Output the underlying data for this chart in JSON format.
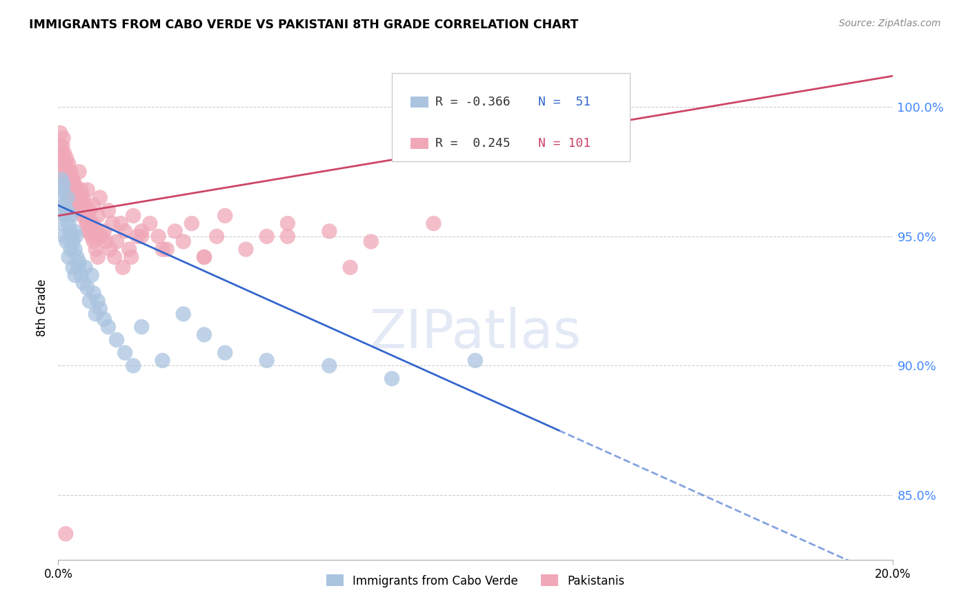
{
  "title": "IMMIGRANTS FROM CABO VERDE VS PAKISTANI 8TH GRADE CORRELATION CHART",
  "source": "Source: ZipAtlas.com",
  "ylabel": "8th Grade",
  "y_ticks": [
    85.0,
    90.0,
    95.0,
    100.0
  ],
  "x_min": 0.0,
  "x_max": 20.0,
  "y_min": 82.5,
  "y_max": 102.0,
  "legend_blue_R": -0.366,
  "legend_blue_N": 51,
  "legend_pink_R": 0.245,
  "legend_pink_N": 101,
  "blue_color": "#aac4e0",
  "pink_color": "#f0a8b8",
  "blue_line_color": "#3366cc",
  "pink_line_color": "#cc4466",
  "watermark": "ZIPatlas",
  "blue_line_x0": 0.0,
  "blue_line_y0": 96.2,
  "blue_line_x1": 12.0,
  "blue_line_y1": 87.5,
  "pink_line_x0": 0.0,
  "pink_line_y0": 95.8,
  "pink_line_x1": 20.0,
  "pink_line_y1": 101.2,
  "cabo_verde_x": [
    0.05,
    0.08,
    0.1,
    0.12,
    0.15,
    0.18,
    0.2,
    0.22,
    0.25,
    0.28,
    0.3,
    0.32,
    0.35,
    0.38,
    0.4,
    0.42,
    0.45,
    0.48,
    0.5,
    0.55,
    0.6,
    0.65,
    0.7,
    0.75,
    0.8,
    0.85,
    0.9,
    0.95,
    1.0,
    1.1,
    1.2,
    1.4,
    1.6,
    1.8,
    2.0,
    2.5,
    3.0,
    4.0,
    5.0,
    6.5,
    8.0,
    10.0,
    0.05,
    0.1,
    0.15,
    0.2,
    0.25,
    0.3,
    0.35,
    0.4,
    3.5
  ],
  "cabo_verde_y": [
    96.5,
    97.2,
    96.8,
    97.0,
    96.2,
    95.8,
    96.0,
    96.5,
    95.5,
    95.2,
    95.8,
    95.0,
    94.8,
    95.2,
    94.5,
    95.0,
    94.2,
    93.8,
    94.0,
    93.5,
    93.2,
    93.8,
    93.0,
    92.5,
    93.5,
    92.8,
    92.0,
    92.5,
    92.2,
    91.8,
    91.5,
    91.0,
    90.5,
    90.0,
    91.5,
    90.2,
    92.0,
    90.5,
    90.2,
    90.0,
    89.5,
    90.2,
    95.5,
    96.0,
    95.0,
    94.8,
    94.2,
    94.5,
    93.8,
    93.5,
    91.2
  ],
  "pakistani_x": [
    0.02,
    0.05,
    0.08,
    0.1,
    0.12,
    0.15,
    0.18,
    0.2,
    0.22,
    0.25,
    0.28,
    0.3,
    0.32,
    0.35,
    0.38,
    0.4,
    0.42,
    0.45,
    0.48,
    0.5,
    0.52,
    0.55,
    0.58,
    0.6,
    0.62,
    0.65,
    0.68,
    0.7,
    0.72,
    0.75,
    0.8,
    0.85,
    0.9,
    0.95,
    1.0,
    1.1,
    1.2,
    1.3,
    1.4,
    1.5,
    1.6,
    1.7,
    1.8,
    1.9,
    2.0,
    2.2,
    2.4,
    2.6,
    2.8,
    3.0,
    3.2,
    3.5,
    3.8,
    4.0,
    4.5,
    5.0,
    5.5,
    6.5,
    7.5,
    9.0,
    0.05,
    0.1,
    0.15,
    0.2,
    0.25,
    0.3,
    0.35,
    0.4,
    0.45,
    0.5,
    0.55,
    0.6,
    0.65,
    0.7,
    0.75,
    0.8,
    0.85,
    0.9,
    0.95,
    1.0,
    0.12,
    0.22,
    0.32,
    0.42,
    0.52,
    0.62,
    0.72,
    0.82,
    0.92,
    1.05,
    1.15,
    1.25,
    1.35,
    1.55,
    1.75,
    2.0,
    2.5,
    3.5,
    5.5,
    7.0,
    0.18
  ],
  "pakistani_y": [
    97.8,
    98.5,
    97.5,
    98.2,
    98.0,
    97.2,
    97.8,
    97.0,
    97.5,
    97.2,
    97.0,
    96.8,
    97.2,
    96.5,
    97.0,
    96.8,
    96.2,
    96.5,
    96.0,
    97.5,
    96.2,
    96.8,
    95.8,
    96.5,
    96.0,
    96.2,
    95.5,
    96.8,
    95.2,
    96.0,
    95.5,
    96.2,
    95.0,
    95.8,
    96.5,
    95.2,
    96.0,
    95.5,
    94.8,
    95.5,
    95.2,
    94.5,
    95.8,
    95.0,
    95.2,
    95.5,
    95.0,
    94.5,
    95.2,
    94.8,
    95.5,
    94.2,
    95.0,
    95.8,
    94.5,
    95.0,
    95.5,
    95.2,
    94.8,
    95.5,
    99.0,
    98.5,
    98.2,
    98.0,
    97.8,
    97.5,
    97.2,
    97.0,
    96.8,
    96.5,
    96.2,
    96.0,
    95.8,
    95.5,
    95.2,
    95.0,
    94.8,
    94.5,
    94.2,
    95.0,
    98.8,
    97.5,
    97.2,
    96.8,
    96.5,
    96.2,
    95.8,
    95.5,
    95.2,
    95.0,
    94.8,
    94.5,
    94.2,
    93.8,
    94.2,
    95.0,
    94.5,
    94.2,
    95.0,
    93.8,
    83.5
  ]
}
